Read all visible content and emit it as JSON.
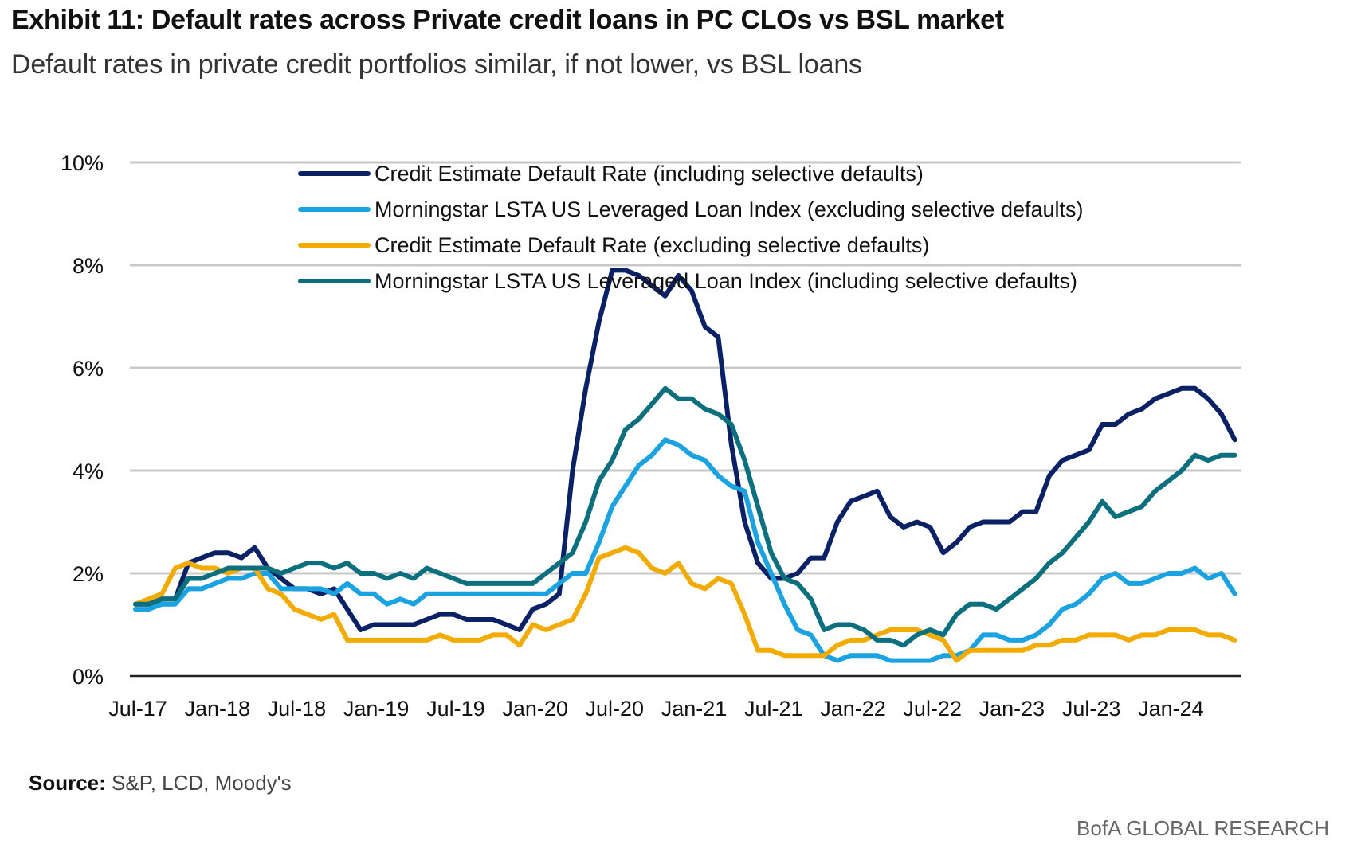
{
  "header": {
    "title": "Exhibit 11: Default rates across Private credit loans in PC CLOs vs BSL market",
    "subtitle": "Default rates in private credit portfolios similar, if not lower, vs BSL loans"
  },
  "footer": {
    "source_label": "Source:",
    "source_text": " S&P, LCD, Moody's",
    "brand": "BofA GLOBAL RESEARCH"
  },
  "chart_data": {
    "type": "line",
    "title": "Exhibit 11: Default rates across Private credit loans in PC CLOs vs BSL market",
    "subtitle": "Default rates in private credit portfolios similar, if not lower, vs BSL loans",
    "xlabel": "",
    "ylabel": "",
    "ylim": [
      0,
      10
    ],
    "y_ticks": [
      0,
      2,
      4,
      6,
      8,
      10
    ],
    "y_tick_labels": [
      "0%",
      "2%",
      "4%",
      "6%",
      "8%",
      "10%"
    ],
    "x_start": "Jul-17",
    "x_tick_labels": [
      "Jul-17",
      "Jan-18",
      "Jul-18",
      "Jan-19",
      "Jul-19",
      "Jan-20",
      "Jul-20",
      "Jan-21",
      "Jul-21",
      "Jan-22",
      "Jul-22",
      "Jan-23",
      "Jul-23",
      "Jan-24"
    ],
    "grid": true,
    "legend_position": "top-center",
    "series": [
      {
        "name": "Credit Estimate Default Rate (including selective defaults)",
        "color": "#0b2166",
        "values": [
          1.4,
          1.4,
          1.5,
          1.5,
          2.2,
          2.3,
          2.4,
          2.4,
          2.3,
          2.5,
          2.1,
          1.9,
          1.7,
          1.7,
          1.6,
          1.7,
          1.3,
          0.9,
          1.0,
          1.0,
          1.0,
          1.0,
          1.1,
          1.2,
          1.2,
          1.1,
          1.1,
          1.1,
          1.0,
          0.9,
          1.3,
          1.4,
          1.6,
          4.0,
          5.6,
          6.9,
          7.9,
          7.9,
          7.8,
          7.6,
          7.4,
          7.8,
          7.5,
          6.8,
          6.6,
          4.5,
          3.0,
          2.2,
          1.9,
          1.9,
          2.0,
          2.3,
          2.3,
          3.0,
          3.4,
          3.5,
          3.6,
          3.1,
          2.9,
          3.0,
          2.9,
          2.4,
          2.6,
          2.9,
          3.0,
          3.0,
          3.0,
          3.2,
          3.2,
          3.9,
          4.2,
          4.3,
          4.4,
          4.9,
          4.9,
          5.1,
          5.2,
          5.4,
          5.5,
          5.6,
          5.6,
          5.4,
          5.1,
          4.6
        ]
      },
      {
        "name": "Morningstar LSTA US Leveraged Loan Index (excluding selective defaults)",
        "color": "#1aa3e0",
        "values": [
          1.3,
          1.3,
          1.4,
          1.4,
          1.7,
          1.7,
          1.8,
          1.9,
          1.9,
          2.0,
          2.0,
          1.7,
          1.7,
          1.7,
          1.7,
          1.6,
          1.8,
          1.6,
          1.6,
          1.4,
          1.5,
          1.4,
          1.6,
          1.6,
          1.6,
          1.6,
          1.6,
          1.6,
          1.6,
          1.6,
          1.6,
          1.6,
          1.8,
          2.0,
          2.0,
          2.6,
          3.3,
          3.7,
          4.1,
          4.3,
          4.6,
          4.5,
          4.3,
          4.2,
          3.9,
          3.7,
          3.6,
          2.6,
          2.0,
          1.4,
          0.9,
          0.8,
          0.4,
          0.3,
          0.4,
          0.4,
          0.4,
          0.3,
          0.3,
          0.3,
          0.3,
          0.4,
          0.4,
          0.5,
          0.8,
          0.8,
          0.7,
          0.7,
          0.8,
          1.0,
          1.3,
          1.4,
          1.6,
          1.9,
          2.0,
          1.8,
          1.8,
          1.9,
          2.0,
          2.0,
          2.1,
          1.9,
          2.0,
          1.6
        ]
      },
      {
        "name": "Credit Estimate Default Rate (excluding selective defaults)",
        "color": "#f2ab00",
        "values": [
          1.4,
          1.5,
          1.6,
          2.1,
          2.2,
          2.1,
          2.1,
          2.0,
          2.1,
          2.1,
          1.7,
          1.6,
          1.3,
          1.2,
          1.1,
          1.2,
          0.7,
          0.7,
          0.7,
          0.7,
          0.7,
          0.7,
          0.7,
          0.8,
          0.7,
          0.7,
          0.7,
          0.8,
          0.8,
          0.6,
          1.0,
          0.9,
          1.0,
          1.1,
          1.6,
          2.3,
          2.4,
          2.5,
          2.4,
          2.1,
          2.0,
          2.2,
          1.8,
          1.7,
          1.9,
          1.8,
          1.2,
          0.5,
          0.5,
          0.4,
          0.4,
          0.4,
          0.4,
          0.6,
          0.7,
          0.7,
          0.8,
          0.9,
          0.9,
          0.9,
          0.8,
          0.7,
          0.3,
          0.5,
          0.5,
          0.5,
          0.5,
          0.5,
          0.6,
          0.6,
          0.7,
          0.7,
          0.8,
          0.8,
          0.8,
          0.7,
          0.8,
          0.8,
          0.9,
          0.9,
          0.9,
          0.8,
          0.8,
          0.7
        ]
      },
      {
        "name": "Morningstar LSTA US Leveraged Loan Index (including selective defaults)",
        "color": "#0c6f7e",
        "values": [
          1.4,
          1.4,
          1.5,
          1.5,
          1.9,
          1.9,
          2.0,
          2.1,
          2.1,
          2.1,
          2.1,
          2.0,
          2.1,
          2.2,
          2.2,
          2.1,
          2.2,
          2.0,
          2.0,
          1.9,
          2.0,
          1.9,
          2.1,
          2.0,
          1.9,
          1.8,
          1.8,
          1.8,
          1.8,
          1.8,
          1.8,
          2.0,
          2.2,
          2.4,
          3.0,
          3.8,
          4.2,
          4.8,
          5.0,
          5.3,
          5.6,
          5.4,
          5.4,
          5.2,
          5.1,
          4.9,
          4.2,
          3.3,
          2.4,
          1.9,
          1.8,
          1.5,
          0.9,
          1.0,
          1.0,
          0.9,
          0.7,
          0.7,
          0.6,
          0.8,
          0.9,
          0.8,
          1.2,
          1.4,
          1.4,
          1.3,
          1.5,
          1.7,
          1.9,
          2.2,
          2.4,
          2.7,
          3.0,
          3.4,
          3.1,
          3.2,
          3.3,
          3.6,
          3.8,
          4.0,
          4.3,
          4.2,
          4.3,
          4.3
        ]
      }
    ]
  }
}
